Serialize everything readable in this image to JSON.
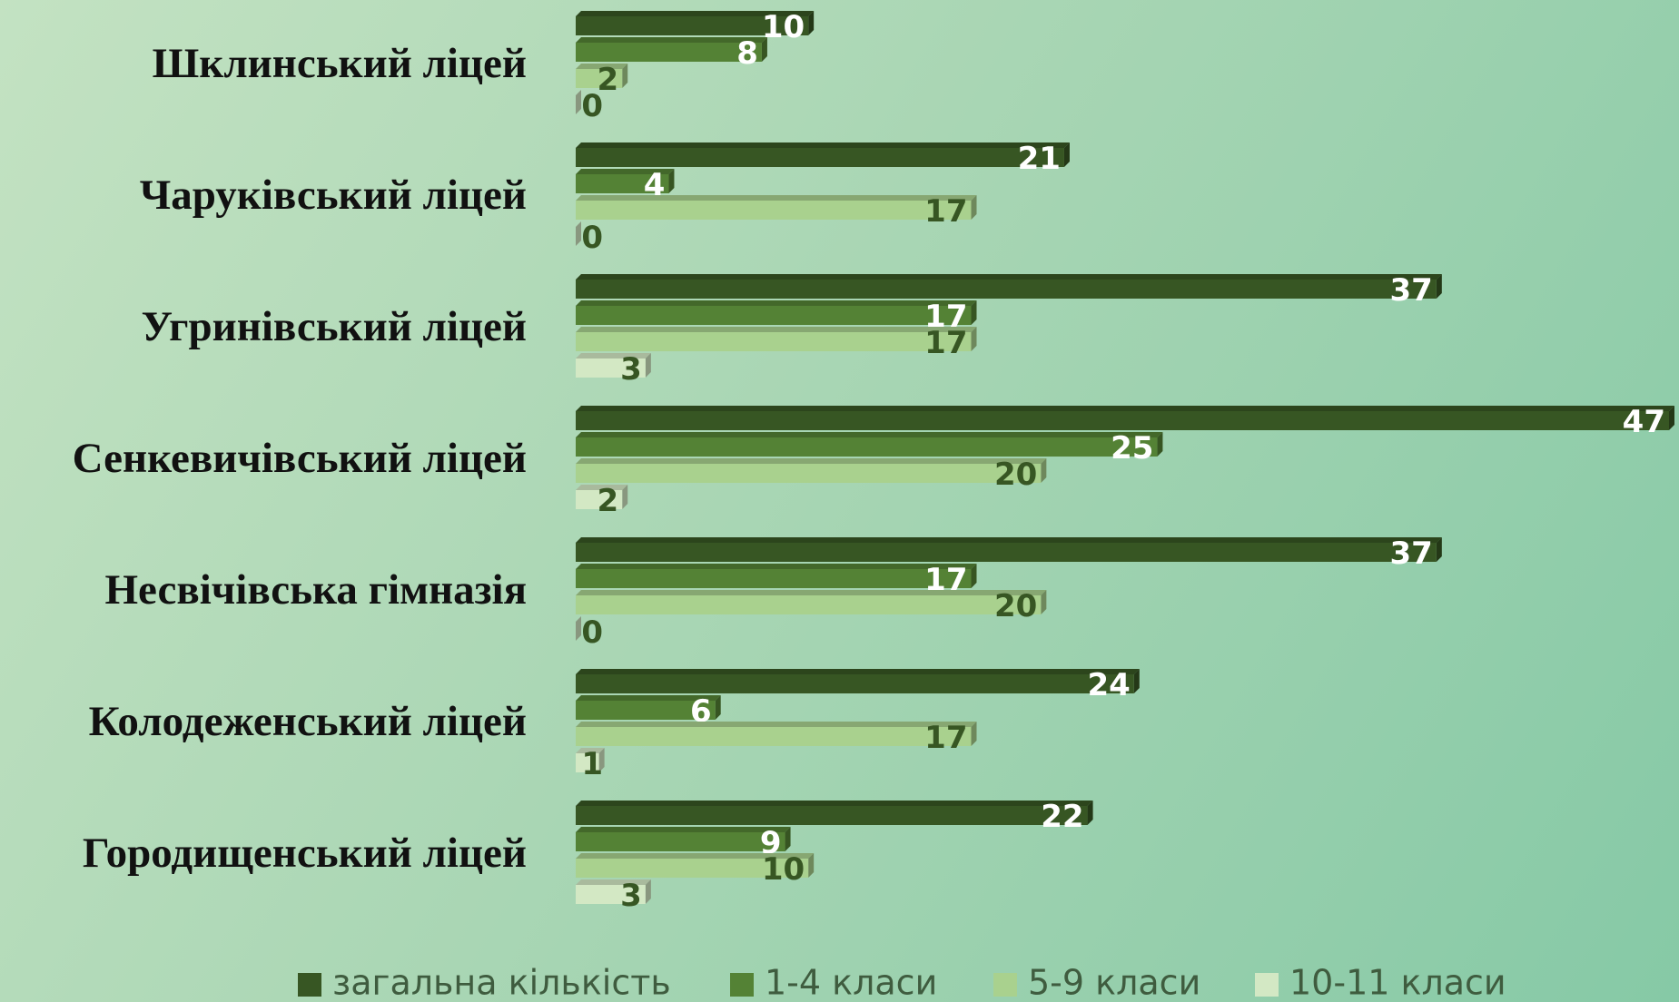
{
  "chart_data": {
    "type": "hbar",
    "categories": [
      "Шклинський ліцей",
      "Чаруківський ліцей",
      "Угринівський ліцей",
      "Сенкевичівський ліцей",
      "Несвічівська гімназія",
      "Колодеженський ліцей",
      "Городищенський ліцей"
    ],
    "series": [
      {
        "name": "загальна кількість",
        "color": "#375623",
        "values": [
          10,
          21,
          37,
          47,
          37,
          24,
          22
        ]
      },
      {
        "name": "1-4 класи",
        "color": "#548235",
        "values": [
          8,
          4,
          17,
          25,
          17,
          6,
          9
        ]
      },
      {
        "name": "5-9 класи",
        "color": "#a9d18e",
        "values": [
          2,
          17,
          17,
          20,
          20,
          17,
          10
        ]
      },
      {
        "name": "10-11 класи",
        "color": "#d3e8c4",
        "values": [
          0,
          0,
          3,
          2,
          0,
          1,
          3
        ]
      }
    ],
    "legend": "bottom"
  }
}
